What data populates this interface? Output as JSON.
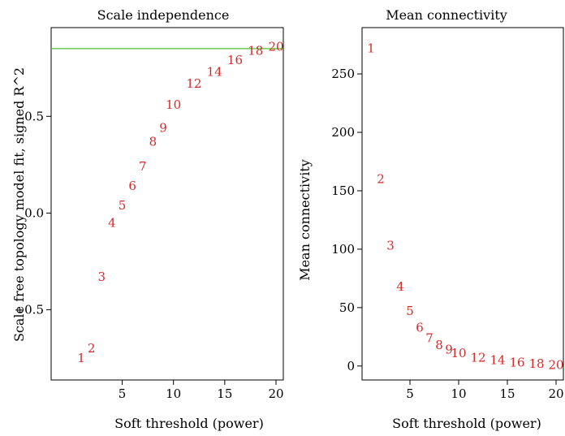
{
  "chart_data": [
    {
      "type": "scatter",
      "title": "Scale independence",
      "xlabel": "Soft threshold (power)",
      "ylabel": "Scale free topology model fit, signed R^2",
      "xlim": [
        1,
        20
      ],
      "ylim": [
        -0.8,
        0.9
      ],
      "xticks": [
        5,
        10,
        15,
        20
      ],
      "yticks": [
        -0.5,
        0.0,
        0.5
      ],
      "ytick_labels": [
        "−0.5",
        "0.0",
        "0.5"
      ],
      "hline": 0.85,
      "hline_color": "#4cc22a",
      "point_color": "#d42a2a",
      "points": [
        {
          "x": 1,
          "y": -0.75,
          "label": "1"
        },
        {
          "x": 2,
          "y": -0.7,
          "label": "2"
        },
        {
          "x": 3,
          "y": -0.33,
          "label": "3"
        },
        {
          "x": 4,
          "y": -0.05,
          "label": "4"
        },
        {
          "x": 5,
          "y": 0.04,
          "label": "5"
        },
        {
          "x": 6,
          "y": 0.14,
          "label": "6"
        },
        {
          "x": 7,
          "y": 0.24,
          "label": "7"
        },
        {
          "x": 8,
          "y": 0.37,
          "label": "8"
        },
        {
          "x": 9,
          "y": 0.44,
          "label": "9"
        },
        {
          "x": 10,
          "y": 0.56,
          "label": "10"
        },
        {
          "x": 12,
          "y": 0.67,
          "label": "12"
        },
        {
          "x": 14,
          "y": 0.73,
          "label": "14"
        },
        {
          "x": 16,
          "y": 0.79,
          "label": "16"
        },
        {
          "x": 18,
          "y": 0.84,
          "label": "18"
        },
        {
          "x": 20,
          "y": 0.86,
          "label": "20"
        }
      ]
    },
    {
      "type": "scatter",
      "title": "Mean connectivity",
      "xlabel": "Soft threshold (power)",
      "ylabel": "Mean connectivity",
      "xlim": [
        1,
        20
      ],
      "ylim": [
        -5,
        282
      ],
      "xticks": [
        5,
        10,
        15,
        20
      ],
      "yticks": [
        0,
        50,
        100,
        150,
        200,
        250
      ],
      "ytick_labels": [
        "0",
        "50",
        "100",
        "150",
        "200",
        "250"
      ],
      "point_color": "#d42a2a",
      "points": [
        {
          "x": 1,
          "y": 272,
          "label": "1"
        },
        {
          "x": 2,
          "y": 160,
          "label": "2"
        },
        {
          "x": 3,
          "y": 103,
          "label": "3"
        },
        {
          "x": 4,
          "y": 68,
          "label": "4"
        },
        {
          "x": 5,
          "y": 47,
          "label": "5"
        },
        {
          "x": 6,
          "y": 33,
          "label": "6"
        },
        {
          "x": 7,
          "y": 24,
          "label": "7"
        },
        {
          "x": 8,
          "y": 18,
          "label": "8"
        },
        {
          "x": 9,
          "y": 14,
          "label": "9"
        },
        {
          "x": 10,
          "y": 11,
          "label": "10"
        },
        {
          "x": 12,
          "y": 7,
          "label": "12"
        },
        {
          "x": 14,
          "y": 5,
          "label": "14"
        },
        {
          "x": 16,
          "y": 3,
          "label": "16"
        },
        {
          "x": 18,
          "y": 2,
          "label": "18"
        },
        {
          "x": 20,
          "y": 1,
          "label": "20"
        }
      ]
    }
  ]
}
